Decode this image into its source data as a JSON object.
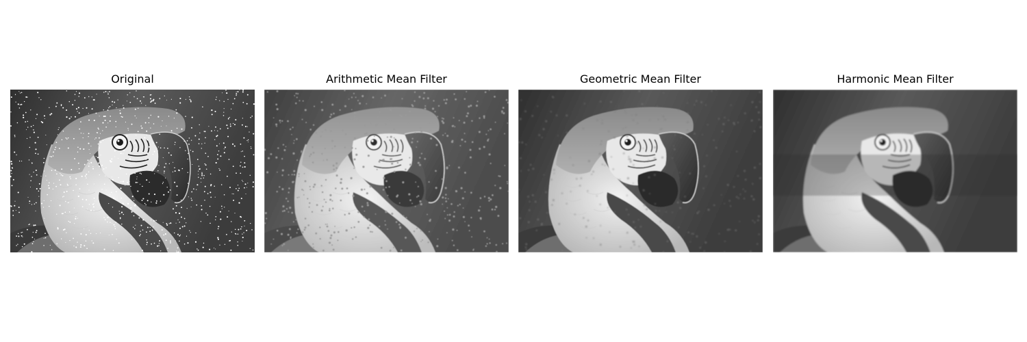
{
  "figure": {
    "panels": [
      {
        "title": "Original",
        "variant": "noisy",
        "subject": "parrot-photo"
      },
      {
        "title": "Arithmetic Mean Filter",
        "variant": "arithmetic",
        "subject": "parrot-photo"
      },
      {
        "title": "Geometric Mean Filter",
        "variant": "geometric",
        "subject": "parrot-photo"
      },
      {
        "title": "Harmonic Mean Filter",
        "variant": "harmonic",
        "subject": "parrot-photo"
      }
    ]
  }
}
